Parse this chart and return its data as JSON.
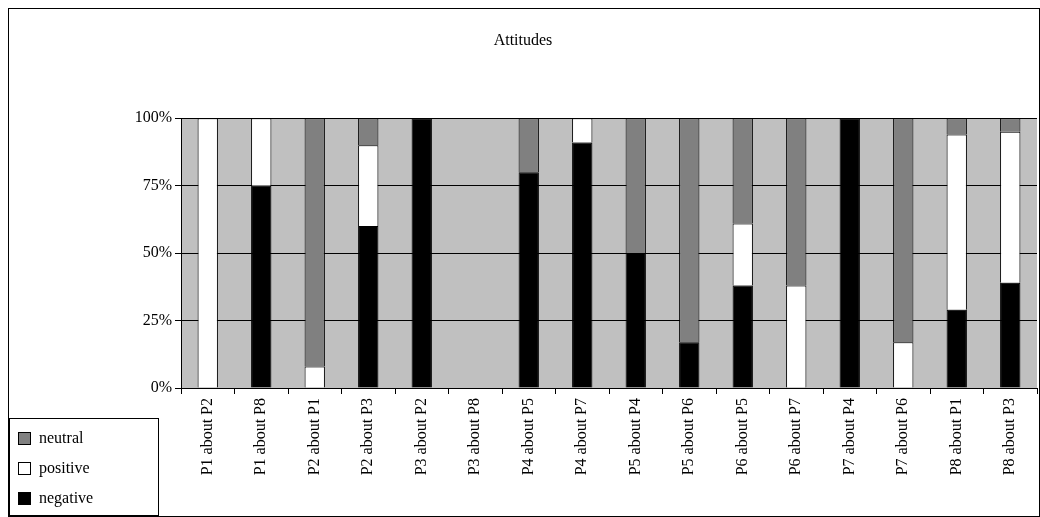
{
  "chart_data": {
    "type": "bar",
    "title": "Attitudes",
    "stacked": true,
    "categories": [
      "P1 about P2",
      "P1 about P8",
      "P2 about P1",
      "P2 about P3",
      "P3 about P2",
      "P3 about P8",
      "P4 about P5",
      "P4 about P7",
      "P5 about P4",
      "P5 about P6",
      "P6 about P5",
      "P6 about P7",
      "P7 about P4",
      "P7 about P6",
      "P8 about P1",
      "P8 about P3"
    ],
    "series": [
      {
        "name": "negative",
        "color": "#000000",
        "values": [
          0,
          75,
          0,
          60,
          100,
          0,
          80,
          91,
          50,
          17,
          38,
          0,
          100,
          0,
          29,
          39
        ]
      },
      {
        "name": "positive",
        "color": "#ffffff",
        "values": [
          100,
          25,
          8,
          30,
          0,
          0,
          0,
          9,
          0,
          0,
          23,
          38,
          0,
          17,
          65,
          56
        ]
      },
      {
        "name": "neutral",
        "color": "#808080",
        "values": [
          0,
          0,
          92,
          10,
          0,
          0,
          20,
          0,
          50,
          83,
          39,
          62,
          0,
          83,
          6,
          5
        ]
      }
    ],
    "ylim": [
      0,
      100
    ],
    "yticks": [
      {
        "value": 0,
        "label": "0%"
      },
      {
        "value": 25,
        "label": "25%"
      },
      {
        "value": 50,
        "label": "50%"
      },
      {
        "value": 75,
        "label": "75%"
      },
      {
        "value": 100,
        "label": "100%"
      }
    ],
    "grid": "y",
    "legend": "bottom left"
  }
}
